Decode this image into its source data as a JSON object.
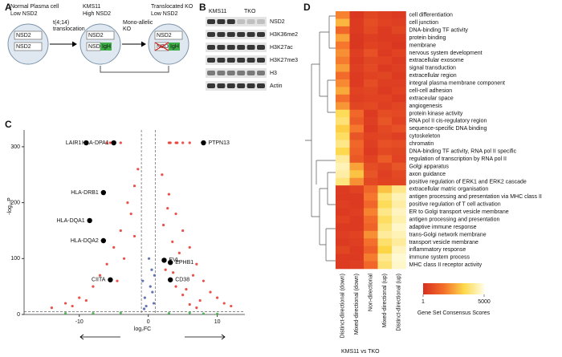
{
  "panel_labels": [
    "A",
    "B",
    "C",
    "D"
  ],
  "diagram": {
    "stages": [
      {
        "title": "Normal Plasma cell",
        "subtitle": "Low NSD2",
        "genes": [
          "NSD2",
          "NSD2"
        ]
      },
      {
        "title": "KMS11",
        "subtitle": "High NSD2",
        "genes": [
          "NSD2",
          "NSD2"
        ],
        "fusion": "IgH"
      },
      {
        "title": "Translocated KO",
        "subtitle": "Low NSD2",
        "genes": [
          "NSD2",
          "NSD2"
        ],
        "fusion": "IgH"
      }
    ],
    "arrows": [
      [
        "t(4;14)",
        "translocation"
      ],
      [
        "Mono-allelic",
        "KO"
      ]
    ]
  },
  "blot": {
    "groups": [
      "KMS11",
      "TKO"
    ],
    "rows": [
      "NSD2",
      "H3K36me2",
      "H3K27ac",
      "H3K27me3",
      "H3",
      "Actin"
    ]
  },
  "chart_data": [
    {
      "type": "scatter",
      "xlabel": "log₂FC",
      "ylabel": "-log₁₀P",
      "xlim": [
        -18,
        14
      ],
      "ylim": [
        0,
        330
      ],
      "xticks": [
        -10,
        0,
        10
      ],
      "yticks": [
        0,
        100,
        200,
        300
      ],
      "vlines": [
        -1,
        1
      ],
      "hline": 5,
      "series": [
        {
          "color": "#e8322a",
          "x": [
            2,
            3,
            4,
            5,
            6,
            7,
            8,
            9,
            10,
            11,
            12,
            3.5,
            4.5,
            6.5,
            2.5,
            5.5,
            7.5,
            3,
            4,
            5,
            3.2,
            4.2,
            6,
            8,
            2.2,
            2.8,
            3.6,
            4,
            5,
            6,
            7,
            -2,
            -3,
            -4,
            -5,
            -6,
            -7,
            -8,
            -10,
            -12,
            -14,
            -3.5,
            -2.5,
            -4.5,
            -6,
            -5.5,
            -4,
            -9,
            -11,
            -2,
            -1.5
          ],
          "y": [
            250,
            215,
            180,
            150,
            120,
            90,
            60,
            40,
            30,
            20,
            15,
            130,
            110,
            70,
            80,
            45,
            25,
            307,
            307,
            307,
            307,
            307,
            307,
            307,
            160,
            190,
            75,
            50,
            35,
            18,
            12,
            230,
            200,
            150,
            120,
            90,
            70,
            50,
            30,
            20,
            12,
            100,
            180,
            60,
            307,
            307,
            307,
            25,
            15,
            140,
            260
          ]
        },
        {
          "color": "#4a5ea8",
          "x": [
            -0.5,
            0.3,
            0.8,
            -0.8,
            0.5,
            -0.3,
            0.1,
            0.6,
            -0.6,
            0.9
          ],
          "y": [
            30,
            50,
            20,
            60,
            80,
            15,
            100,
            40,
            10,
            70
          ]
        },
        {
          "color": "#3fae49",
          "x": [
            -8,
            -4,
            3,
            6,
            10,
            -12,
            8
          ],
          "y": [
            2,
            3,
            2,
            3,
            1,
            2,
            1.5
          ]
        }
      ],
      "points": [
        {
          "label": "LAIR1",
          "x": -9,
          "y": 307
        },
        {
          "label": "HLA-DPA1",
          "x": -5,
          "y": 307
        },
        {
          "label": "PTPN13",
          "x": 8,
          "y": 307
        },
        {
          "label": "HLA-DRB1",
          "x": -6.5,
          "y": 218
        },
        {
          "label": "HLA-DQA1",
          "x": -8.5,
          "y": 168
        },
        {
          "label": "HLA-DQA2",
          "x": -6.5,
          "y": 132
        },
        {
          "label": "CIITA",
          "x": -5.5,
          "y": 62
        },
        {
          "label": "EVL",
          "x": 2.3,
          "y": 97
        },
        {
          "label": "EPHB1",
          "x": 3.2,
          "y": 93
        },
        {
          "label": "CD38",
          "x": 3.2,
          "y": 62
        }
      ],
      "point_color": "#000000"
    },
    {
      "type": "heatmap",
      "xlabel": "KMS11 vs TKO",
      "columns": [
        "Distinct-directional (down)",
        "Mixed-directional (down)",
        "Non-directional",
        "Mixed-directional (up)",
        "Distinct-directional (up)"
      ],
      "rows": [
        "cell differentiation",
        "cell junction",
        "DNA-binding TF activity",
        "protein binding",
        "membrane",
        "nervous system development",
        "extracellular exosome",
        "signal transduction",
        "extracellular region",
        "integral plasma membrane component",
        "cell-cell adhesion",
        "extraceular space",
        "angiogenesis",
        "protein kinase activity",
        "RNA pol II cis-regulatory region",
        "sequence-specific DNA binding",
        "cytoskeleton",
        "chromatin",
        "DNA-binding TF activity, RNA pol II specific",
        "regulation of transcription by RNA pol II",
        "Golgi apparatus",
        "axon guidance",
        "positive regulation of ERK1 and ERK2 cascade",
        "extracellular matric organisation",
        "antigen processing and presentation via MHC class II",
        "positive regulation of T cell activation",
        "ER to Golgi transport vesicle membrane",
        "antigen processing and presentation",
        "adaptive immune response",
        "trans-Golgi network membrane",
        "transport vesicle membrane",
        "inflammatory response",
        "immune system process",
        "MHC class II receptor activity"
      ],
      "values": [
        [
          2000,
          200,
          600,
          400,
          300
        ],
        [
          2800,
          300,
          800,
          500,
          400
        ],
        [
          1500,
          300,
          700,
          300,
          600
        ],
        [
          2500,
          200,
          400,
          300,
          300
        ],
        [
          1800,
          200,
          500,
          400,
          200
        ],
        [
          2200,
          400,
          900,
          300,
          500
        ],
        [
          1900,
          300,
          600,
          500,
          300
        ],
        [
          2400,
          400,
          700,
          300,
          400
        ],
        [
          1600,
          300,
          500,
          600,
          300
        ],
        [
          2100,
          300,
          800,
          400,
          400
        ],
        [
          2600,
          500,
          600,
          300,
          500
        ],
        [
          1700,
          400,
          500,
          500,
          300
        ],
        [
          2300,
          600,
          700,
          400,
          600
        ],
        [
          3500,
          1500,
          300,
          800,
          700
        ],
        [
          3800,
          1200,
          400,
          1000,
          500
        ],
        [
          3200,
          1800,
          300,
          700,
          900
        ],
        [
          3600,
          1000,
          500,
          600,
          400
        ],
        [
          4000,
          1500,
          400,
          900,
          800
        ],
        [
          3400,
          1300,
          300,
          700,
          600
        ],
        [
          4200,
          1100,
          500,
          1200,
          500
        ],
        [
          4500,
          2500,
          800,
          600,
          1000
        ],
        [
          4300,
          3000,
          1000,
          400,
          700
        ],
        [
          3900,
          2200,
          700,
          500,
          600
        ],
        [
          300,
          500,
          1500,
          3000,
          4000
        ],
        [
          300,
          300,
          1800,
          3800,
          4500
        ],
        [
          400,
          300,
          1500,
          3500,
          4300
        ],
        [
          300,
          400,
          2000,
          4000,
          4600
        ],
        [
          500,
          300,
          1600,
          3600,
          4400
        ],
        [
          300,
          300,
          1400,
          3900,
          4700
        ],
        [
          400,
          500,
          2200,
          4200,
          4500
        ],
        [
          300,
          400,
          1700,
          3700,
          4200
        ],
        [
          600,
          300,
          1300,
          3300,
          4600
        ],
        [
          300,
          300,
          1900,
          4100,
          4800
        ],
        [
          300,
          400,
          1500,
          3800,
          4700
        ]
      ],
      "colors": [
        "#d7301f",
        "#f46d2a",
        "#fdd849",
        "#fffde6"
      ],
      "colorbar": {
        "label": "Gene Set Consensus Scores",
        "lim": [
          1,
          5000
        ],
        "ticks": [
          1,
          5000
        ]
      }
    }
  ]
}
